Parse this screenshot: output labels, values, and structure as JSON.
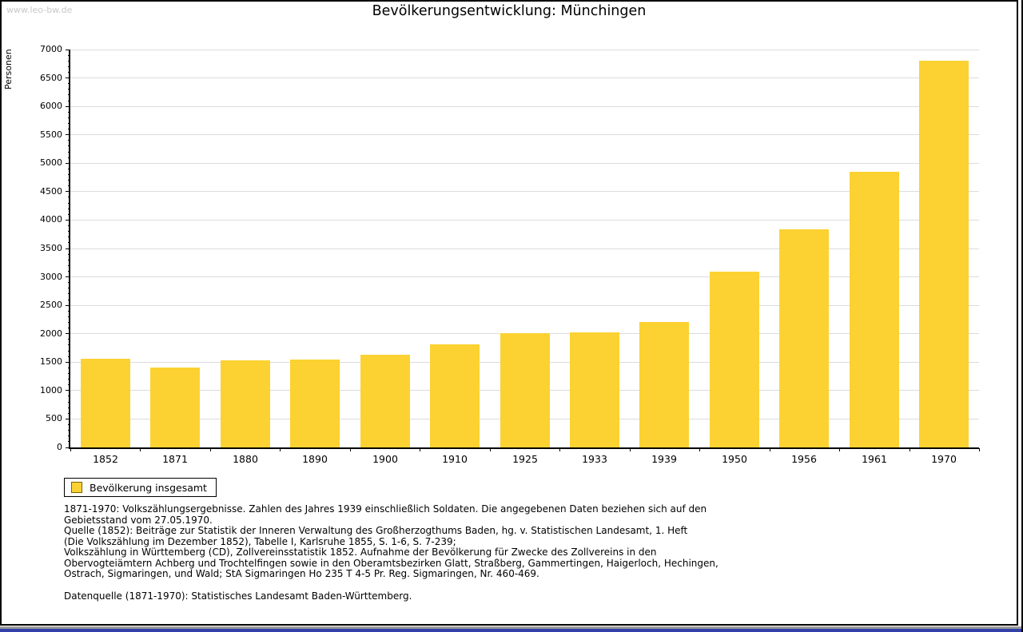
{
  "page": {
    "watermark": "www.leo-bw.de"
  },
  "colors": {
    "bar": "#FCD232",
    "grid": "#DCDCDC",
    "watermark": "#C8C8C8",
    "bottom_strip": "#3240A8"
  },
  "chart_data": {
    "type": "bar",
    "title": "Bevölkerungsentwicklung: Münchingen",
    "xlabel": "",
    "ylabel": "Personen",
    "categories": [
      "1852",
      "1871",
      "1880",
      "1890",
      "1900",
      "1910",
      "1925",
      "1933",
      "1939",
      "1950",
      "1956",
      "1961",
      "1970"
    ],
    "values": [
      1555,
      1410,
      1535,
      1550,
      1630,
      1810,
      2015,
      2030,
      2200,
      3090,
      3840,
      4845,
      6805
    ],
    "ylim": [
      0,
      7000
    ],
    "ytick_step": 500,
    "minor_tick_step": 100,
    "grid": true,
    "legend_position": "bottom-left",
    "series_name": "Bevölkerung insgesamt"
  },
  "legend": {
    "label": "Bevölkerung insgesamt"
  },
  "footnote": {
    "lines": [
      "1871-1970: Volkszählungsergebnisse. Zahlen des Jahres 1939 einschließlich Soldaten. Die angegebenen Daten beziehen sich auf den",
      "Gebietsstand vom 27.05.1970.",
      "Quelle (1852): Beiträge zur Statistik der Inneren Verwaltung des Großherzogthums Baden, hg. v. Statistischen Landesamt, 1. Heft",
      "(Die Volkszählung im Dezember 1852), Tabelle I, Karlsruhe 1855, S. 1-6, S. 7-239;",
      "Volkszählung in Württemberg (CD), Zollvereinsstatistik 1852. Aufnahme der Bevölkerung für Zwecke des Zollvereins in den",
      "Obervogteiämtern Achberg und Trochtelfingen sowie in den Oberamtsbezirken Glatt, Straßberg, Gammertingen, Haigerloch, Hechingen,",
      "Ostrach, Sigmaringen, und Wald; StA Sigmaringen Ho 235 T 4-5 Pr. Reg. Sigmaringen, Nr. 460-469."
    ],
    "datasource": "Datenquelle (1871-1970): Statistisches Landesamt Baden-Württemberg."
  }
}
